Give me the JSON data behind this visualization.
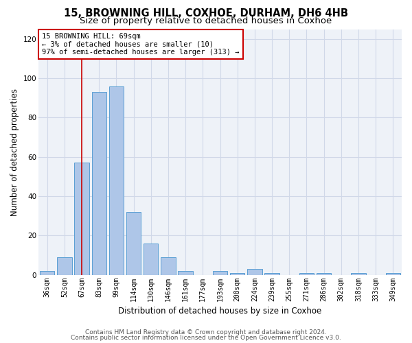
{
  "title_line1": "15, BROWNING HILL, COXHOE, DURHAM, DH6 4HB",
  "title_line2": "Size of property relative to detached houses in Coxhoe",
  "xlabel": "Distribution of detached houses by size in Coxhoe",
  "ylabel": "Number of detached properties",
  "categories": [
    "36sqm",
    "52sqm",
    "67sqm",
    "83sqm",
    "99sqm",
    "114sqm",
    "130sqm",
    "146sqm",
    "161sqm",
    "177sqm",
    "193sqm",
    "208sqm",
    "224sqm",
    "239sqm",
    "255sqm",
    "271sqm",
    "286sqm",
    "302sqm",
    "318sqm",
    "333sqm",
    "349sqm"
  ],
  "values": [
    2,
    9,
    57,
    93,
    96,
    32,
    16,
    9,
    2,
    0,
    2,
    1,
    3,
    1,
    0,
    1,
    1,
    0,
    1,
    0,
    1
  ],
  "bar_color": "#aec6e8",
  "bar_edge_color": "#5a9fd4",
  "vline_x": 2.0,
  "vline_color": "#cc0000",
  "annotation_box_text": "15 BROWNING HILL: 69sqm\n← 3% of detached houses are smaller (10)\n97% of semi-detached houses are larger (313) →",
  "annotation_box_color": "#cc0000",
  "annotation_box_fill": "#ffffff",
  "ylim": [
    0,
    125
  ],
  "yticks": [
    0,
    20,
    40,
    60,
    80,
    100,
    120
  ],
  "grid_color": "#d0d8e8",
  "plot_bg_color": "#eef2f8",
  "background_color": "#ffffff",
  "footer_line1": "Contains HM Land Registry data © Crown copyright and database right 2024.",
  "footer_line2": "Contains public sector information licensed under the Open Government Licence v3.0.",
  "title_fontsize": 10.5,
  "subtitle_fontsize": 9.5,
  "ylabel_fontsize": 8.5,
  "xlabel_fontsize": 8.5,
  "tick_fontsize": 7,
  "annot_fontsize": 7.5,
  "footer_fontsize": 6.5
}
